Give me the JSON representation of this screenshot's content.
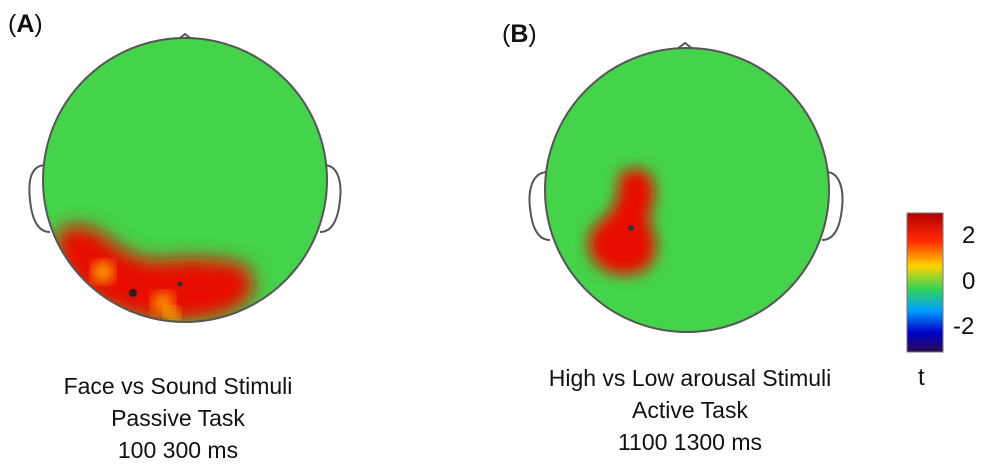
{
  "panels": [
    {
      "id": "A",
      "label": "A",
      "caption": [
        "Face vs Sound Stimuli",
        "Passive Task",
        "100 300 ms"
      ]
    },
    {
      "id": "B",
      "label": "B",
      "caption": [
        "High vs Low arousal Stimuli",
        "Active Task",
        "1100 1300 ms"
      ]
    }
  ],
  "colorbar": {
    "ticks": [
      "2",
      "0",
      "-2"
    ],
    "unit": "t",
    "stops": [
      "#b50000",
      "#ff2a00",
      "#ffd200",
      "#32d25a",
      "#00a0ff",
      "#0000c8",
      "#2a0a52"
    ]
  },
  "colors": {
    "scalp_neutral": "#44d34a",
    "activation_high": "#e80c00",
    "activation_mid": "#ff8a00",
    "outline": "#555555"
  }
}
